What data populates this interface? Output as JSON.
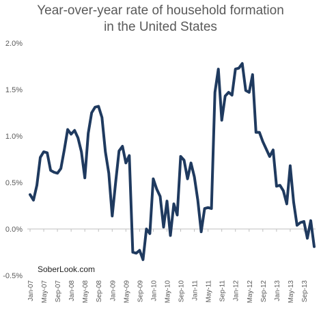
{
  "chart_data": {
    "type": "line",
    "title_lines": [
      "Year-over-year rate of household formation",
      "in the United States"
    ],
    "xlabel": "",
    "ylabel": "",
    "ylim": [
      -0.005,
      0.02
    ],
    "y_ticks": [
      -0.005,
      0,
      0.005,
      0.01,
      0.015,
      0.02
    ],
    "y_tick_labels": [
      "-0.5%",
      "0.0%",
      "0.5%",
      "1.0%",
      "1.5%",
      "2.0%"
    ],
    "x_start": "Jan-07",
    "x_tick_labels": [
      "Jan-07",
      "May-07",
      "Sep-07",
      "Jan-08",
      "May-08",
      "Sep-08",
      "Jan-09",
      "May-09",
      "Sep-09",
      "Jan-10",
      "May-10",
      "Sep-10",
      "Jan-11",
      "May-11",
      "Sep-11",
      "Jan-12",
      "May-12",
      "Sep-12",
      "Jan-13",
      "May-13",
      "Sep-13"
    ],
    "grid": false,
    "annotation": "SoberLook.com",
    "line_color": "#1f3a5f",
    "series": [
      {
        "values": [
          0.0037,
          0.0031,
          0.0047,
          0.0077,
          0.0083,
          0.0082,
          0.0063,
          0.0061,
          0.006,
          0.0065,
          0.0085,
          0.0107,
          0.0102,
          0.0106,
          0.0098,
          0.0083,
          0.0055,
          0.0103,
          0.0125,
          0.0131,
          0.0132,
          0.012,
          0.0083,
          0.006,
          0.0014,
          0.005,
          0.0084,
          0.0089,
          0.0071,
          0.0079,
          -0.0025,
          -0.0026,
          -0.0023,
          -0.0033,
          0.0,
          -0.0005,
          0.0054,
          0.0043,
          0.0035,
          0.0002,
          0.003,
          -0.0007,
          0.0027,
          0.0015,
          0.0078,
          0.0074,
          0.0054,
          0.0071,
          0.0056,
          0.0031,
          -0.0003,
          0.0022,
          0.0023,
          0.0022,
          0.0147,
          0.0172,
          0.0117,
          0.0143,
          0.0147,
          0.0144,
          0.0172,
          0.0173,
          0.0178,
          0.0149,
          0.0147,
          0.0166,
          0.0104,
          0.0104,
          0.0094,
          0.0086,
          0.0078,
          0.0085,
          0.0046,
          0.0047,
          0.0041,
          0.0027,
          0.0068,
          0.0029,
          0.0004,
          0.0007,
          0.0008,
          -0.001,
          0.0009,
          -0.0019
        ]
      }
    ]
  }
}
